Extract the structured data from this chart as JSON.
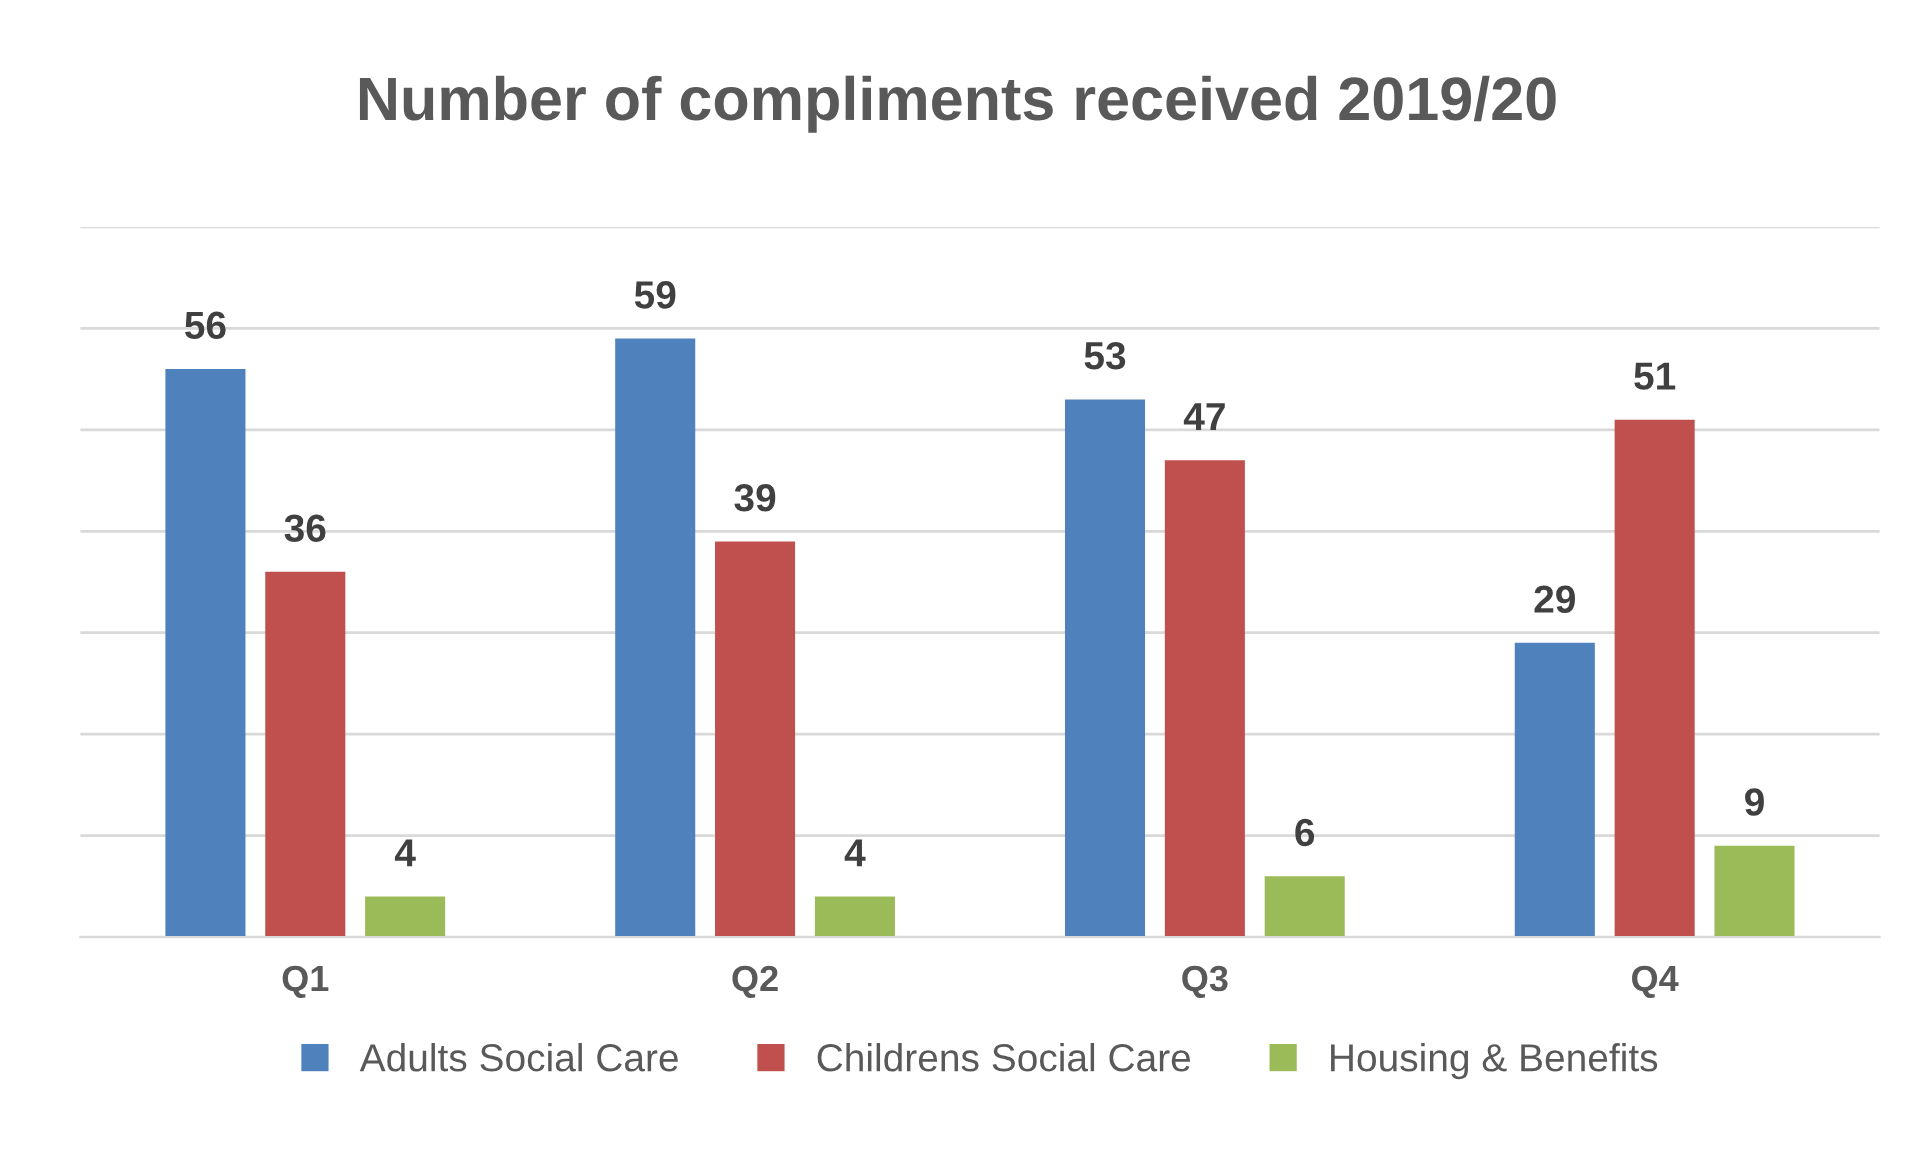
{
  "chart_data": {
    "type": "bar",
    "title": "Number of compliments received 2019/20",
    "categories": [
      "Q1",
      "Q2",
      "Q3",
      "Q4"
    ],
    "series": [
      {
        "name": "Adults Social Care",
        "color": "#4f81bd",
        "values": [
          56,
          59,
          53,
          29
        ]
      },
      {
        "name": "Childrens Social Care",
        "color": "#c0504d",
        "values": [
          36,
          39,
          47,
          51
        ]
      },
      {
        "name": "Housing & Benefits",
        "color": "#9bbb59",
        "values": [
          4,
          4,
          6,
          9
        ]
      }
    ],
    "ylim": [
      0,
      70
    ],
    "yticks": [
      {
        "value": 0,
        "label": null
      },
      {
        "value": 10,
        "label": null
      },
      {
        "value": 20,
        "label": null
      },
      {
        "value": 30,
        "label": null
      },
      {
        "value": 40,
        "label": null
      },
      {
        "value": 50,
        "label": null
      },
      {
        "value": 60,
        "label": null
      },
      {
        "value": 70,
        "label": null
      }
    ],
    "tick_labels": "x",
    "grid": "y",
    "legend": "bottom",
    "data_labels": true
  }
}
